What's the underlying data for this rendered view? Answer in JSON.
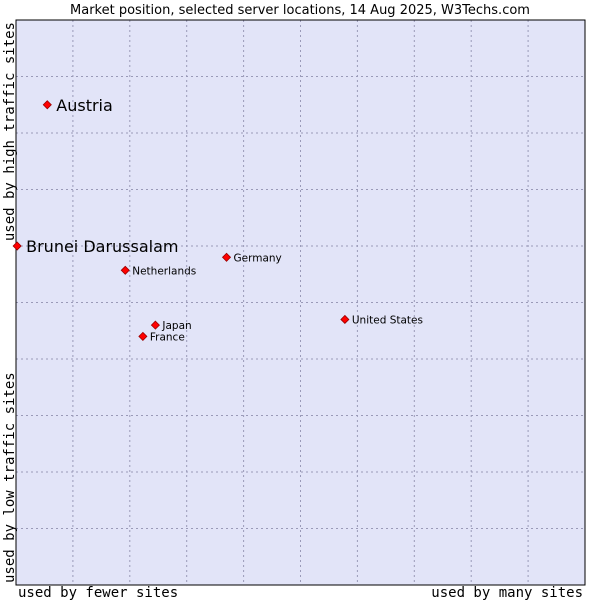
{
  "colors": {
    "plot_background": "#e2e4f8",
    "frame": "#000000",
    "grid": "#9a9ab8",
    "marker": "#ff0000",
    "marker_outline": "#990000"
  },
  "chart_data": {
    "type": "scatter",
    "title": "Market position, selected server locations, 14 Aug 2025, W3Techs.com",
    "xlabel_left": "used by fewer sites",
    "xlabel_right": "used by many sites",
    "ylabel_bottom": "used by low traffic sites",
    "ylabel_top": "used by high traffic sites",
    "xlim": [
      0,
      100
    ],
    "ylim": [
      0,
      100
    ],
    "grid": true,
    "grid_divisions": {
      "x": 10,
      "y": 10
    },
    "points": [
      {
        "name": "Austria",
        "x": 5.5,
        "y": 85.0,
        "highlight": true
      },
      {
        "name": "Brunei Darussalam",
        "x": 0.2,
        "y": 60.0,
        "highlight": true
      },
      {
        "name": "Germany",
        "x": 37.0,
        "y": 58.0,
        "highlight": false
      },
      {
        "name": "Netherlands",
        "x": 19.2,
        "y": 55.7,
        "highlight": false
      },
      {
        "name": "United States",
        "x": 57.8,
        "y": 47.0,
        "highlight": false
      },
      {
        "name": "Japan",
        "x": 24.5,
        "y": 46.0,
        "highlight": false
      },
      {
        "name": "France",
        "x": 22.3,
        "y": 44.0,
        "highlight": false
      }
    ]
  }
}
